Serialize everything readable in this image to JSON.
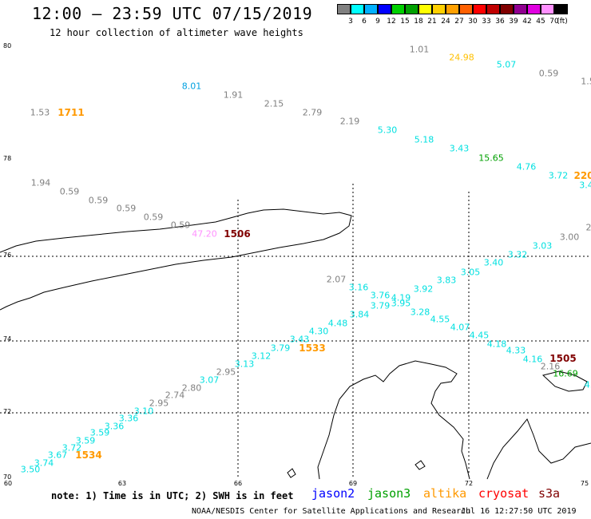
{
  "header": {
    "title": "12:00 – 23:59 UTC 07/15/2019",
    "subtitle": "12 hour collection of altimeter wave heights"
  },
  "scale": {
    "colors": [
      "#808080",
      "#00ffff",
      "#00b0ff",
      "#0000ff",
      "#00d000",
      "#00a000",
      "#ffff00",
      "#ffd000",
      "#ffa000",
      "#ff6000",
      "#ff0000",
      "#c00000",
      "#800000",
      "#900090",
      "#e000e0",
      "#ff90ff",
      "#000000"
    ],
    "ticks": [
      "3",
      "6",
      "9",
      "12",
      "15",
      "18",
      "21",
      "24",
      "27",
      "30",
      "33",
      "36",
      "39",
      "42",
      "45",
      "70"
    ],
    "unit": "(ft)"
  },
  "axes": {
    "lat_labels": [
      "80",
      "78",
      "76",
      "74",
      "72",
      "70"
    ],
    "lon_labels": [
      "60",
      "63",
      "66",
      "69",
      "72",
      "75"
    ]
  },
  "readings": [
    {
      "t": "1.01",
      "c": "#808080"
    },
    {
      "t": "24.98",
      "c": "#ffc000"
    },
    {
      "t": "5.07",
      "c": "#00e0e0"
    },
    {
      "t": "0.59",
      "c": "#808080"
    },
    {
      "t": "1.5",
      "c": "#808080"
    },
    {
      "t": "8.01",
      "c": "#00a0e0"
    },
    {
      "t": "1.91",
      "c": "#808080"
    },
    {
      "t": "2.15",
      "c": "#808080"
    },
    {
      "t": "2.79",
      "c": "#808080"
    },
    {
      "t": "2.19",
      "c": "#808080"
    },
    {
      "t": "5.30",
      "c": "#00e0e0"
    },
    {
      "t": "5.18",
      "c": "#00e0e0"
    },
    {
      "t": "3.43",
      "c": "#00e0e0"
    },
    {
      "t": "15.65",
      "c": "#00a000"
    },
    {
      "t": "4.76",
      "c": "#00e0e0"
    },
    {
      "t": "3.72",
      "c": "#00e0e0"
    },
    {
      "t": "3.4",
      "c": "#00e0e0"
    },
    {
      "t": "1.53",
      "c": "#808080"
    },
    {
      "t": "1.94",
      "c": "#808080"
    },
    {
      "t": "0.59",
      "c": "#808080"
    },
    {
      "t": "0.59",
      "c": "#808080"
    },
    {
      "t": "0.59",
      "c": "#808080"
    },
    {
      "t": "0.59",
      "c": "#808080"
    },
    {
      "t": "0.59",
      "c": "#808080"
    },
    {
      "t": "47.20",
      "c": "#ff90ff"
    },
    {
      "t": "3.03",
      "c": "#00e0e0"
    },
    {
      "t": "3.00",
      "c": "#808080"
    },
    {
      "t": "2",
      "c": "#808080"
    },
    {
      "t": "3.32",
      "c": "#00e0e0"
    },
    {
      "t": "3.40",
      "c": "#00e0e0"
    },
    {
      "t": "3.05",
      "c": "#00e0e0"
    },
    {
      "t": "3.83",
      "c": "#00e0e0"
    },
    {
      "t": "3.92",
      "c": "#00e0e0"
    },
    {
      "t": "2.07",
      "c": "#808080"
    },
    {
      "t": "3.16",
      "c": "#00e0e0"
    },
    {
      "t": "3.76",
      "c": "#00e0e0"
    },
    {
      "t": "4.19",
      "c": "#00e0e0"
    },
    {
      "t": "3.79",
      "c": "#00e0e0"
    },
    {
      "t": "3.95",
      "c": "#00e0e0"
    },
    {
      "t": "3.28",
      "c": "#00e0e0"
    },
    {
      "t": "3.84",
      "c": "#00e0e0"
    },
    {
      "t": "4.55",
      "c": "#00e0e0"
    },
    {
      "t": "4.48",
      "c": "#00e0e0"
    },
    {
      "t": "4.07",
      "c": "#00e0e0"
    },
    {
      "t": "4.30",
      "c": "#00e0e0"
    },
    {
      "t": "4.45",
      "c": "#00e0e0"
    },
    {
      "t": "3.43",
      "c": "#00e0e0"
    },
    {
      "t": "4.18",
      "c": "#00e0e0"
    },
    {
      "t": "3.79",
      "c": "#00e0e0"
    },
    {
      "t": "4.33",
      "c": "#00e0e0"
    },
    {
      "t": "3.12",
      "c": "#00e0e0"
    },
    {
      "t": "4.16",
      "c": "#00e0e0"
    },
    {
      "t": "2.16",
      "c": "#808080"
    },
    {
      "t": "3.13",
      "c": "#00e0e0"
    },
    {
      "t": "16.69",
      "c": "#00a000"
    },
    {
      "t": "4.",
      "c": "#00e0e0"
    },
    {
      "t": "2.95",
      "c": "#808080"
    },
    {
      "t": "3.07",
      "c": "#00e0e0"
    },
    {
      "t": "2.80",
      "c": "#808080"
    },
    {
      "t": "2.74",
      "c": "#808080"
    },
    {
      "t": "2.95",
      "c": "#808080"
    },
    {
      "t": "3.10",
      "c": "#00e0e0"
    },
    {
      "t": "3.36",
      "c": "#00e0e0"
    },
    {
      "t": "3.36",
      "c": "#00e0e0"
    },
    {
      "t": "3.59",
      "c": "#00e0e0"
    },
    {
      "t": "3.59",
      "c": "#00e0e0"
    },
    {
      "t": "3.72",
      "c": "#00e0e0"
    },
    {
      "t": "3.67",
      "c": "#00e0e0"
    },
    {
      "t": "3.74",
      "c": "#00e0e0"
    },
    {
      "t": "3.50",
      "c": "#00e0e0"
    }
  ],
  "times": [
    {
      "t": "1711",
      "c": "#ff9900"
    },
    {
      "t": "1506",
      "c": "#800000"
    },
    {
      "t": "1533",
      "c": "#ff9900"
    },
    {
      "t": "1505",
      "c": "#800000"
    },
    {
      "t": "1534",
      "c": "#ff9900"
    },
    {
      "t": "220",
      "c": "#ff9900"
    }
  ],
  "footer": {
    "note": "note: 1) Time is in UTC; 2) SWH is in feet",
    "satellites": [
      {
        "name": "jason2",
        "color": "#0000ff"
      },
      {
        "name": "jason3",
        "color": "#00a000"
      },
      {
        "name": "altika",
        "color": "#ff9900"
      },
      {
        "name": "cryosat",
        "color": "#ff0000"
      },
      {
        "name": "s3a",
        "color": "#800000"
      }
    ],
    "credit": "NOAA/NESDIS Center for Satellite Applications and Research",
    "timestamp": "Jul 16 12:27:50 UTC 2019"
  }
}
